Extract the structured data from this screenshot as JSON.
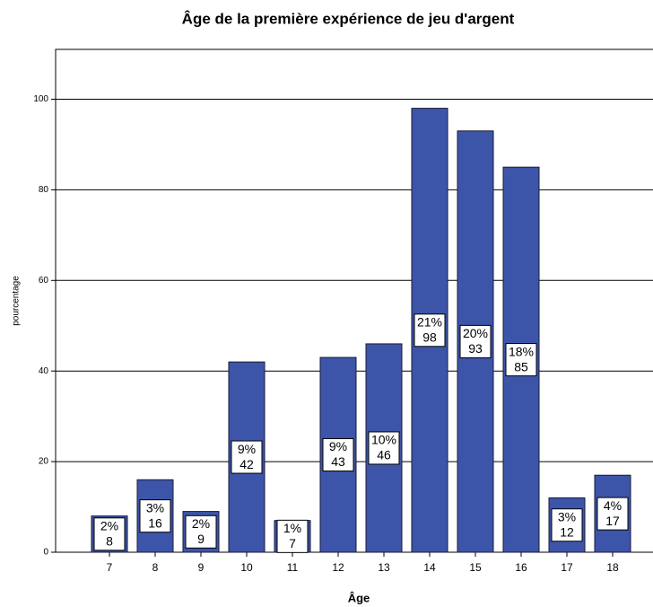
{
  "chart_data": {
    "type": "bar",
    "title": "Âge de la première expérience de jeu d'argent",
    "x_label": "Âge",
    "y_label": "pourcentage",
    "categories": [
      "7",
      "8",
      "9",
      "10",
      "11",
      "12",
      "13",
      "14",
      "15",
      "16",
      "17",
      "18"
    ],
    "values": [
      8,
      16,
      9,
      42,
      7,
      43,
      46,
      98,
      93,
      85,
      12,
      17
    ],
    "percent_labels": [
      "2%",
      "3%",
      "2%",
      "9%",
      "1%",
      "9%",
      "10%",
      "21%",
      "20%",
      "18%",
      "3%",
      "4%"
    ],
    "color": "#3d55a8",
    "ylim": [
      0,
      111
    ],
    "yticks": [
      0,
      20,
      40,
      60,
      80,
      100
    ],
    "grid": true
  }
}
